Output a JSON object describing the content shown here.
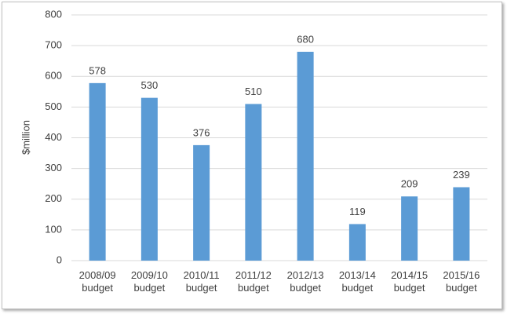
{
  "chart_data": {
    "type": "bar",
    "y_label": "$million",
    "categories": [
      "2008/09 budget",
      "2009/10 budget",
      "2010/11 budget",
      "2011/12 budget",
      "2012/13 budget",
      "2013/14 budget",
      "2014/15 budget",
      "2015/16 budget"
    ],
    "values": [
      578,
      530,
      376,
      510,
      680,
      119,
      209,
      239
    ],
    "color": "#5b9bd5",
    "ylim": [
      0,
      800
    ],
    "yticks": [
      0,
      100,
      200,
      300,
      400,
      500,
      600,
      700,
      800
    ],
    "grid": true
  }
}
